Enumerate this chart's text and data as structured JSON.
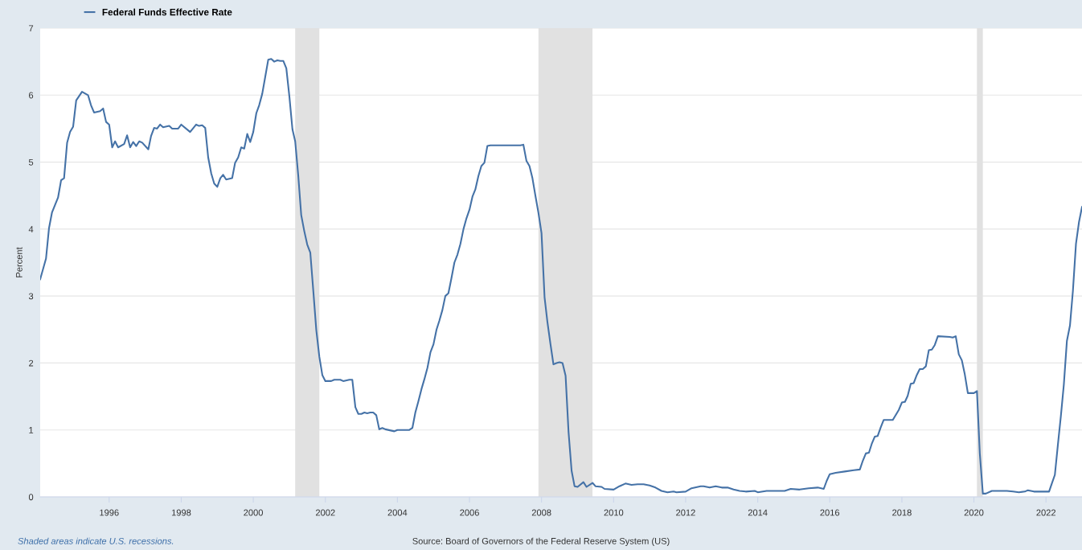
{
  "chart_data": {
    "type": "line",
    "ylabel": "Percent",
    "x": [
      "1994-02",
      "1994-04",
      "1994-05",
      "1994-06",
      "1994-08",
      "1994-09",
      "1994-10",
      "1994-11",
      "1994-12",
      "1995-01",
      "1995-02",
      "1995-04",
      "1995-06",
      "1995-07",
      "1995-08",
      "1995-10",
      "1995-11",
      "1995-12",
      "1996-01",
      "1996-02",
      "1996-03",
      "1996-04",
      "1996-06",
      "1996-07",
      "1996-08",
      "1996-09",
      "1996-10",
      "1996-11",
      "1996-12",
      "1997-02",
      "1997-03",
      "1997-04",
      "1997-05",
      "1997-06",
      "1997-07",
      "1997-09",
      "1997-10",
      "1997-12",
      "1998-01",
      "1998-04",
      "1998-06",
      "1998-07",
      "1998-08",
      "1998-09",
      "1998-10",
      "1998-11",
      "1998-12",
      "1999-01",
      "1999-02",
      "1999-03",
      "1999-04",
      "1999-06",
      "1999-07",
      "1999-08",
      "1999-09",
      "1999-10",
      "1999-11",
      "1999-12",
      "2000-01",
      "2000-02",
      "2000-03",
      "2000-04",
      "2000-05",
      "2000-06",
      "2000-07",
      "2000-08",
      "2000-09",
      "2000-10",
      "2000-11",
      "2000-12",
      "2001-01",
      "2001-02",
      "2001-03",
      "2001-04",
      "2001-05",
      "2001-06",
      "2001-07",
      "2001-08",
      "2001-09",
      "2001-10",
      "2001-11",
      "2001-12",
      "2002-01",
      "2002-03",
      "2002-04",
      "2002-06",
      "2002-07",
      "2002-09",
      "2002-10",
      "2002-11",
      "2002-12",
      "2003-01",
      "2003-02",
      "2003-03",
      "2003-04",
      "2003-05",
      "2003-06",
      "2003-07",
      "2003-08",
      "2003-09",
      "2003-12",
      "2004-01",
      "2004-05",
      "2004-06",
      "2004-07",
      "2004-08",
      "2004-09",
      "2004-10",
      "2004-11",
      "2004-12",
      "2005-01",
      "2005-02",
      "2005-03",
      "2005-04",
      "2005-05",
      "2005-06",
      "2005-07",
      "2005-08",
      "2005-09",
      "2005-10",
      "2005-11",
      "2005-12",
      "2006-01",
      "2006-02",
      "2006-03",
      "2006-04",
      "2006-05",
      "2006-06",
      "2006-07",
      "2006-08",
      "2007-06",
      "2007-07",
      "2007-08",
      "2007-09",
      "2007-10",
      "2007-11",
      "2007-12",
      "2008-01",
      "2008-02",
      "2008-03",
      "2008-04",
      "2008-05",
      "2008-06",
      "2008-07",
      "2008-08",
      "2008-09",
      "2008-10",
      "2008-11",
      "2008-12",
      "2009-01",
      "2009-03",
      "2009-04",
      "2009-06",
      "2009-07",
      "2009-09",
      "2009-10",
      "2010-01",
      "2010-03",
      "2010-05",
      "2010-07",
      "2010-09",
      "2010-11",
      "2011-01",
      "2011-03",
      "2011-05",
      "2011-07",
      "2011-09",
      "2011-10",
      "2012-01",
      "2012-03",
      "2012-06",
      "2012-07",
      "2012-09",
      "2012-11",
      "2013-01",
      "2013-03",
      "2013-05",
      "2013-07",
      "2013-09",
      "2013-12",
      "2014-01",
      "2014-04",
      "2014-07",
      "2014-10",
      "2014-12",
      "2015-03",
      "2015-06",
      "2015-09",
      "2015-11",
      "2015-12",
      "2016-01",
      "2016-03",
      "2016-06",
      "2016-09",
      "2016-11",
      "2016-12",
      "2017-01",
      "2017-02",
      "2017-03",
      "2017-04",
      "2017-05",
      "2017-06",
      "2017-07",
      "2017-10",
      "2017-12",
      "2018-01",
      "2018-02",
      "2018-03",
      "2018-04",
      "2018-05",
      "2018-06",
      "2018-07",
      "2018-08",
      "2018-09",
      "2018-10",
      "2018-11",
      "2018-12",
      "2019-01",
      "2019-05",
      "2019-06",
      "2019-07",
      "2019-08",
      "2019-09",
      "2019-10",
      "2019-11",
      "2020-01",
      "2020-02",
      "2020-03",
      "2020-04",
      "2020-05",
      "2020-07",
      "2020-09",
      "2020-12",
      "2021-02",
      "2021-04",
      "2021-06",
      "2021-07",
      "2021-09",
      "2021-12",
      "2022-02",
      "2022-03",
      "2022-04",
      "2022-05",
      "2022-06",
      "2022-07",
      "2022-08",
      "2022-09",
      "2022-10",
      "2022-11",
      "2022-12",
      "2023-01"
    ],
    "series": [
      {
        "name": "Federal Funds Effective Rate",
        "color": "#4572a7",
        "values": [
          3.25,
          3.56,
          4.01,
          4.25,
          4.47,
          4.73,
          4.76,
          5.29,
          5.45,
          5.53,
          5.92,
          6.05,
          6.0,
          5.85,
          5.74,
          5.76,
          5.8,
          5.6,
          5.56,
          5.22,
          5.31,
          5.22,
          5.27,
          5.4,
          5.22,
          5.3,
          5.24,
          5.31,
          5.29,
          5.19,
          5.39,
          5.51,
          5.5,
          5.56,
          5.52,
          5.54,
          5.5,
          5.5,
          5.56,
          5.45,
          5.56,
          5.54,
          5.55,
          5.51,
          5.07,
          4.83,
          4.68,
          4.63,
          4.76,
          4.81,
          4.74,
          4.76,
          4.99,
          5.07,
          5.22,
          5.2,
          5.42,
          5.3,
          5.45,
          5.73,
          5.85,
          6.02,
          6.27,
          6.53,
          6.54,
          6.5,
          6.52,
          6.51,
          6.51,
          6.4,
          5.98,
          5.49,
          5.31,
          4.8,
          4.21,
          3.97,
          3.77,
          3.65,
          3.07,
          2.49,
          2.09,
          1.82,
          1.73,
          1.73,
          1.75,
          1.75,
          1.73,
          1.75,
          1.75,
          1.34,
          1.24,
          1.24,
          1.26,
          1.25,
          1.26,
          1.26,
          1.22,
          1.01,
          1.03,
          1.01,
          0.98,
          1.0,
          1.0,
          1.03,
          1.26,
          1.43,
          1.61,
          1.76,
          1.93,
          2.16,
          2.28,
          2.5,
          2.63,
          2.79,
          3.0,
          3.04,
          3.26,
          3.5,
          3.62,
          3.78,
          4.0,
          4.16,
          4.29,
          4.49,
          4.59,
          4.79,
          4.94,
          4.99,
          5.24,
          5.25,
          5.25,
          5.26,
          5.02,
          4.94,
          4.76,
          4.49,
          4.24,
          3.94,
          2.98,
          2.61,
          2.28,
          1.98,
          2.0,
          2.01,
          2.0,
          1.81,
          0.97,
          0.39,
          0.16,
          0.15,
          0.22,
          0.15,
          0.21,
          0.16,
          0.15,
          0.12,
          0.11,
          0.16,
          0.2,
          0.18,
          0.19,
          0.19,
          0.17,
          0.14,
          0.09,
          0.07,
          0.08,
          0.07,
          0.08,
          0.13,
          0.16,
          0.16,
          0.14,
          0.16,
          0.14,
          0.14,
          0.11,
          0.09,
          0.08,
          0.09,
          0.07,
          0.09,
          0.09,
          0.09,
          0.12,
          0.11,
          0.13,
          0.14,
          0.12,
          0.24,
          0.34,
          0.36,
          0.38,
          0.4,
          0.41,
          0.54,
          0.65,
          0.66,
          0.79,
          0.9,
          0.91,
          1.04,
          1.15,
          1.15,
          1.3,
          1.41,
          1.42,
          1.51,
          1.69,
          1.7,
          1.82,
          1.91,
          1.91,
          1.95,
          2.19,
          2.2,
          2.27,
          2.4,
          2.39,
          2.38,
          2.4,
          2.13,
          2.04,
          1.83,
          1.55,
          1.55,
          1.58,
          0.65,
          0.05,
          0.05,
          0.09,
          0.09,
          0.09,
          0.08,
          0.07,
          0.08,
          0.1,
          0.08,
          0.08,
          0.08,
          0.2,
          0.33,
          0.77,
          1.21,
          1.68,
          2.33,
          2.56,
          3.08,
          3.78,
          4.1,
          4.33
        ]
      }
    ],
    "xlim": [
      "1994-02",
      "2023-01"
    ],
    "xticks": [
      "1996",
      "1998",
      "2000",
      "2002",
      "2004",
      "2006",
      "2008",
      "2010",
      "2012",
      "2014",
      "2016",
      "2018",
      "2020",
      "2022"
    ],
    "ylim": [
      0,
      7
    ],
    "yticks": [
      0,
      1,
      2,
      3,
      4,
      5,
      6,
      7
    ],
    "bands": [
      {
        "axis": "x",
        "from": "2001-03",
        "to": "2001-11",
        "color": "#e1e1e1"
      },
      {
        "axis": "x",
        "from": "2007-12",
        "to": "2009-06",
        "color": "#e1e1e1"
      },
      {
        "axis": "x",
        "from": "2020-02",
        "to": "2020-04",
        "color": "#e1e1e1"
      }
    ],
    "grid": "y",
    "legend": "top left",
    "line_style": "solid",
    "marker": "none",
    "annotations": [
      "Shaded areas indicate U.S. recessions.",
      "Source: Board of Governors of the Federal Reserve System (US)"
    ]
  }
}
